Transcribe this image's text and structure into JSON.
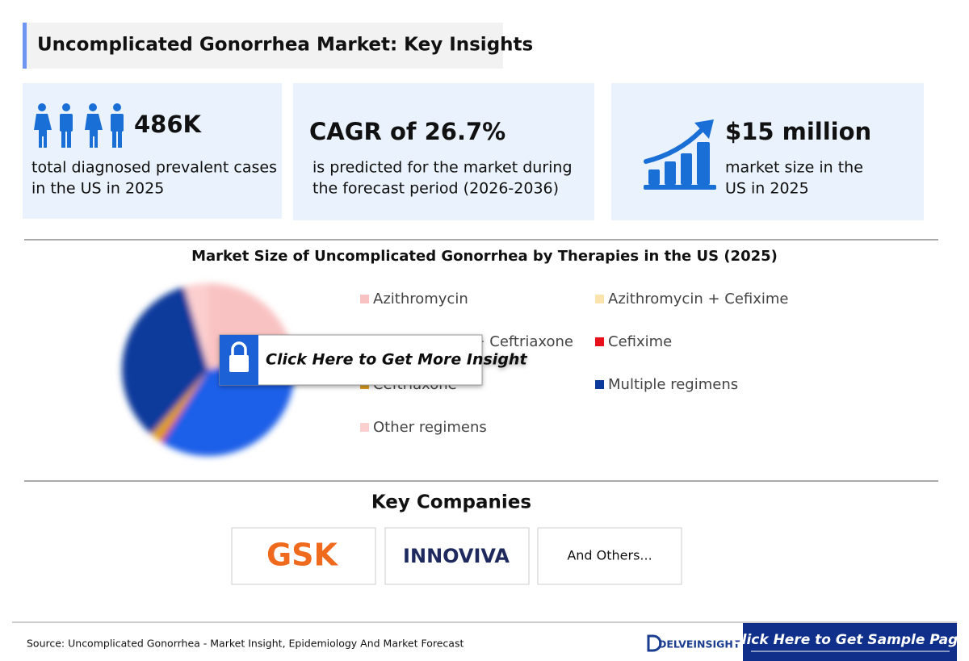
{
  "header": {
    "title": "Uncomplicated Gonorrhea Market: Key Insights"
  },
  "cards": [
    {
      "headline": "486K",
      "lines": [
        "total diagnosed prevalent cases",
        "in the US in 2025"
      ]
    },
    {
      "headline": "CAGR of 26.7%",
      "lines": [
        "is predicted for the market during",
        "the forecast period (2026-2036)"
      ]
    },
    {
      "headline": "$15 million",
      "lines": [
        "market size in the",
        "US in 2025"
      ]
    }
  ],
  "chart_data": {
    "type": "pie",
    "title": "Market Size of Uncomplicated Gonorrhea by Therapies in the US (2025)",
    "categories": [
      "Azithromycin",
      "Azithromycin + Cefixime",
      "Azithromycin + Ceftriaxone",
      "Cefixime",
      "Ceftriaxone",
      "Multiple regimens",
      "Other regimens"
    ],
    "values": [
      20,
      1,
      38,
      0.5,
      2,
      34,
      4.5
    ],
    "colors": [
      "#f9c2c2",
      "#fbe3ad",
      "#1f5fe8",
      "#e8101a",
      "#e0a020",
      "#0b3a9c",
      "#fccfcf"
    ]
  },
  "overlay": {
    "label": "Click Here to Get More Insight"
  },
  "companies": {
    "title": "Key Companies",
    "items": [
      "GSK",
      "INNOVIVA",
      "And Others..."
    ]
  },
  "footer": {
    "source": "Source: Uncomplicated Gonorrhea - Market Insight, Epidemiology And Market Forecast",
    "brand": "DELVEINSIGHT",
    "button": "Click Here to Get Sample Page"
  }
}
